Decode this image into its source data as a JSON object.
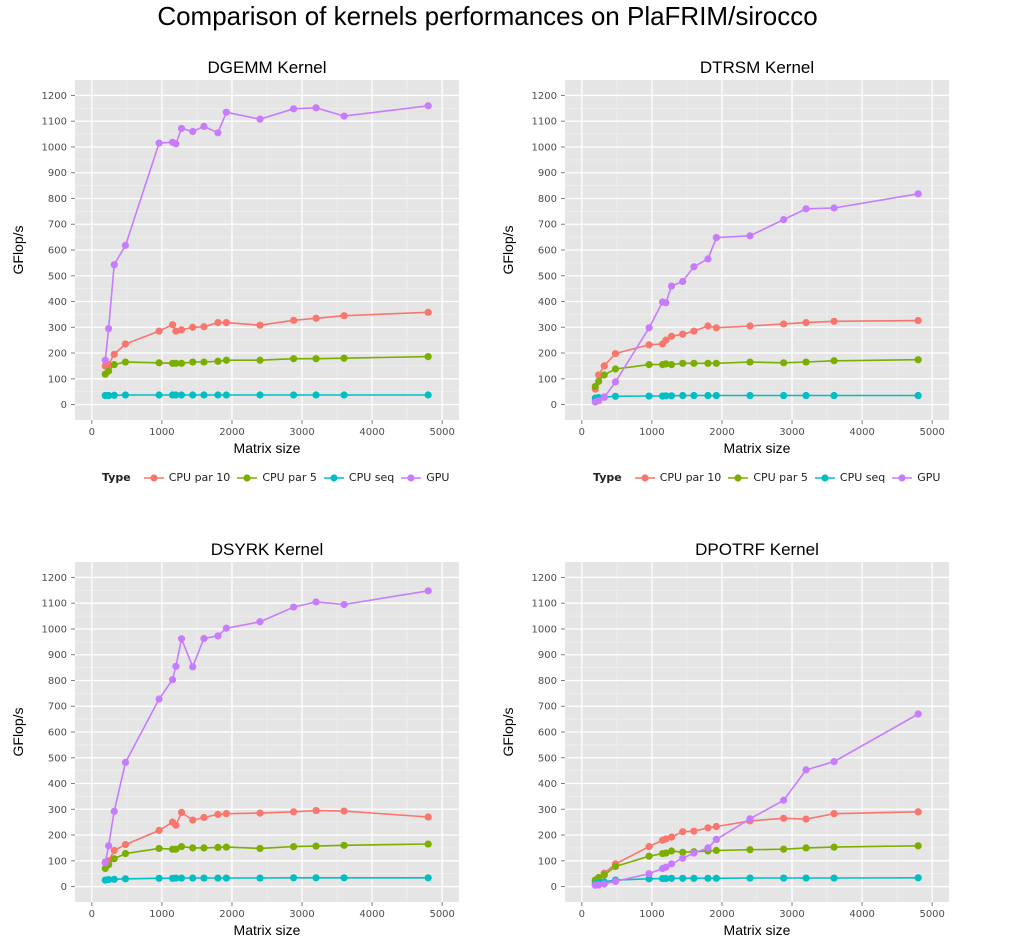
{
  "title": "Comparison of kernels performances on PlaFRIM/sirocco",
  "colors": {
    "panel": "#e5e5e5",
    "grid_major": "#ffffff",
    "grid_minor": "#f0f0f0",
    "tick_text": "#4d4d4d"
  },
  "legend": {
    "title": "Type",
    "entries": [
      {
        "name": "CPU par 10",
        "color": "#f8766d"
      },
      {
        "name": "CPU par 5",
        "color": "#7cae00"
      },
      {
        "name": "CPU seq",
        "color": "#00bfc4"
      },
      {
        "name": "GPU",
        "color": "#c77cff"
      }
    ]
  },
  "chart_data": [
    {
      "type": "line",
      "title": "DGEMM Kernel",
      "xlabel": "Matrix size",
      "ylabel": "GFlop/s",
      "xlim": [
        -240,
        5240
      ],
      "ylim": [
        -60,
        1260
      ],
      "xticks": [
        0,
        1000,
        2000,
        3000,
        4000,
        5000
      ],
      "yticks": [
        0,
        100,
        200,
        300,
        400,
        500,
        600,
        700,
        800,
        900,
        1000,
        1100,
        1200
      ],
      "grid": true,
      "legend": "bottom",
      "x": [
        192,
        240,
        320,
        480,
        960,
        1152,
        1200,
        1280,
        1440,
        1600,
        1800,
        1920,
        2400,
        2880,
        3200,
        3600,
        4800
      ],
      "series": [
        {
          "name": "CPU par 10",
          "values": [
            150,
            155,
            195,
            235,
            285,
            310,
            285,
            290,
            300,
            302,
            318,
            318,
            308,
            327,
            335,
            345,
            358
          ]
        },
        {
          "name": "CPU par 5",
          "values": [
            118,
            130,
            155,
            165,
            162,
            160,
            160,
            160,
            165,
            165,
            168,
            172,
            172,
            178,
            178,
            180,
            186
          ]
        },
        {
          "name": "CPU seq",
          "values": [
            35,
            35,
            36,
            37,
            37,
            37,
            37,
            37,
            37,
            37,
            37,
            37,
            37,
            37,
            37,
            37,
            37
          ]
        },
        {
          "name": "GPU",
          "values": [
            172,
            295,
            543,
            618,
            1015,
            1018,
            1012,
            1072,
            1060,
            1080,
            1055,
            1135,
            1108,
            1148,
            1152,
            1120,
            1160
          ]
        }
      ]
    },
    {
      "type": "line",
      "title": "DTRSM Kernel",
      "xlabel": "Matrix size",
      "ylabel": "GFlop/s",
      "xlim": [
        -240,
        5240
      ],
      "ylim": [
        -60,
        1260
      ],
      "xticks": [
        0,
        1000,
        2000,
        3000,
        4000,
        5000
      ],
      "yticks": [
        0,
        100,
        200,
        300,
        400,
        500,
        600,
        700,
        800,
        900,
        1000,
        1100,
        1200
      ],
      "grid": true,
      "legend": "bottom",
      "x": [
        192,
        240,
        320,
        480,
        960,
        1152,
        1200,
        1280,
        1440,
        1600,
        1800,
        1920,
        2400,
        2880,
        3200,
        3600,
        4800
      ],
      "series": [
        {
          "name": "CPU par 10",
          "values": [
            60,
            115,
            150,
            198,
            232,
            235,
            250,
            265,
            273,
            285,
            305,
            298,
            305,
            313,
            318,
            323,
            326
          ]
        },
        {
          "name": "CPU par 5",
          "values": [
            70,
            90,
            115,
            138,
            155,
            155,
            158,
            155,
            160,
            160,
            160,
            160,
            165,
            162,
            165,
            170,
            174
          ]
        },
        {
          "name": "CPU seq",
          "values": [
            25,
            27,
            29,
            32,
            33,
            33,
            34,
            34,
            35,
            35,
            35,
            35,
            35,
            35,
            35,
            35,
            35
          ]
        },
        {
          "name": "GPU",
          "values": [
            10,
            15,
            28,
            88,
            298,
            398,
            395,
            460,
            478,
            535,
            565,
            648,
            655,
            718,
            760,
            763,
            818
          ]
        }
      ]
    },
    {
      "type": "line",
      "title": "DSYRK Kernel",
      "xlabel": "Matrix size",
      "ylabel": "GFlop/s",
      "xlim": [
        -240,
        5240
      ],
      "ylim": [
        -60,
        1260
      ],
      "xticks": [
        0,
        1000,
        2000,
        3000,
        4000,
        5000
      ],
      "yticks": [
        0,
        100,
        200,
        300,
        400,
        500,
        600,
        700,
        800,
        900,
        1000,
        1100,
        1200
      ],
      "grid": true,
      "legend": "none",
      "x": [
        192,
        240,
        320,
        480,
        960,
        1152,
        1200,
        1280,
        1440,
        1600,
        1800,
        1920,
        2400,
        2880,
        3200,
        3600,
        4800
      ],
      "series": [
        {
          "name": "CPU par 10",
          "values": [
            95,
            100,
            140,
            163,
            218,
            250,
            238,
            288,
            258,
            268,
            280,
            283,
            285,
            290,
            295,
            293,
            270
          ]
        },
        {
          "name": "CPU par 5",
          "values": [
            70,
            85,
            108,
            128,
            148,
            145,
            145,
            155,
            150,
            150,
            152,
            153,
            148,
            155,
            157,
            160,
            165
          ]
        },
        {
          "name": "CPU seq",
          "values": [
            25,
            27,
            28,
            30,
            32,
            32,
            33,
            33,
            33,
            33,
            33,
            33,
            33,
            34,
            34,
            34,
            34
          ]
        },
        {
          "name": "GPU",
          "values": [
            92,
            158,
            292,
            482,
            728,
            803,
            855,
            962,
            853,
            963,
            973,
            1003,
            1028,
            1085,
            1105,
            1095,
            1148
          ]
        }
      ]
    },
    {
      "type": "line",
      "title": "DPOTRF Kernel",
      "xlabel": "Matrix size",
      "ylabel": "GFlop/s",
      "xlim": [
        -240,
        5240
      ],
      "ylim": [
        -60,
        1260
      ],
      "xticks": [
        0,
        1000,
        2000,
        3000,
        4000,
        5000
      ],
      "yticks": [
        0,
        100,
        200,
        300,
        400,
        500,
        600,
        700,
        800,
        900,
        1000,
        1100,
        1200
      ],
      "grid": true,
      "legend": "none",
      "x": [
        192,
        240,
        320,
        480,
        960,
        1152,
        1200,
        1280,
        1440,
        1600,
        1800,
        1920,
        2400,
        2880,
        3200,
        3600,
        4800
      ],
      "series": [
        {
          "name": "CPU par 10",
          "values": [
            20,
            30,
            52,
            88,
            155,
            180,
            185,
            192,
            213,
            215,
            228,
            233,
            255,
            265,
            262,
            283,
            290
          ]
        },
        {
          "name": "CPU par 5",
          "values": [
            25,
            35,
            45,
            78,
            118,
            128,
            130,
            138,
            133,
            135,
            138,
            140,
            143,
            145,
            150,
            153,
            158
          ]
        },
        {
          "name": "CPU seq",
          "values": [
            10,
            14,
            18,
            25,
            30,
            31,
            31,
            32,
            32,
            32,
            32,
            32,
            33,
            33,
            33,
            33,
            34
          ]
        },
        {
          "name": "GPU",
          "values": [
            5,
            6,
            10,
            20,
            50,
            70,
            75,
            88,
            110,
            130,
            150,
            183,
            263,
            335,
            453,
            485,
            670
          ]
        }
      ]
    }
  ]
}
